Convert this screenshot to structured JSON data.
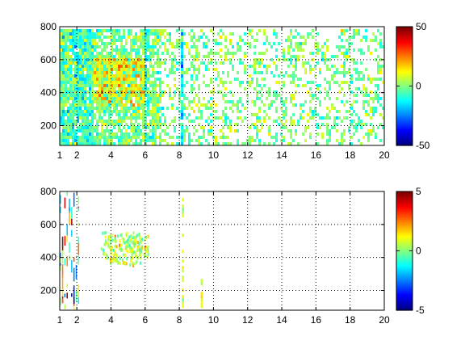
{
  "chart_data": [
    {
      "type": "heatmap",
      "title": "",
      "xlabel": "",
      "ylabel": "",
      "xlim": [
        1,
        20
      ],
      "ylim": [
        80,
        800
      ],
      "x_ticks": [
        1,
        2,
        4,
        6,
        8,
        10,
        12,
        14,
        16,
        18,
        20
      ],
      "y_ticks": [
        200,
        400,
        600,
        800
      ],
      "grid": true,
      "colormap": "jet",
      "colorbar": {
        "min": -50,
        "max": 50,
        "ticks": [
          50,
          0,
          -50
        ]
      },
      "fill_fraction": 0.45,
      "features": [
        {
          "name": "dense cluster",
          "x_range": [
            3,
            6
          ],
          "y_range": [
            330,
            620
          ],
          "mean": 8,
          "spread": 14
        },
        {
          "name": "vertical streak",
          "x": 8.2,
          "y_range": [
            80,
            800
          ],
          "mean": -15,
          "spread": 10
        },
        {
          "name": "vertical streak",
          "x": 6,
          "y_range": [
            80,
            800
          ],
          "mean": -12,
          "spread": 10
        },
        {
          "name": "low-x band",
          "x_range": [
            1,
            3
          ],
          "y_range": [
            80,
            800
          ],
          "mean": -5,
          "spread": 12
        }
      ]
    },
    {
      "type": "heatmap",
      "title": "",
      "xlabel": "",
      "ylabel": "",
      "xlim": [
        1,
        20
      ],
      "ylim": [
        80,
        800
      ],
      "x_ticks": [
        1,
        2,
        4,
        6,
        8,
        10,
        12,
        14,
        16,
        18,
        20
      ],
      "y_ticks": [
        200,
        400,
        600,
        800
      ],
      "grid": true,
      "colormap": "jet",
      "colorbar": {
        "min": -5,
        "max": 5,
        "ticks": [
          5,
          0,
          -5
        ]
      },
      "features": [
        {
          "name": "cluster",
          "x_range": [
            3.4,
            6.2
          ],
          "y_range": [
            360,
            560
          ],
          "mean": 0.5,
          "spread": 1.2
        },
        {
          "name": "vertical streak",
          "x": 8.2,
          "y_range": [
            100,
            760
          ],
          "mean": 1,
          "spread": 0.8
        },
        {
          "name": "vertical streak",
          "x": 9.3,
          "y_range": [
            110,
            270
          ],
          "mean": 1,
          "spread": 0.8
        },
        {
          "name": "scattered lines",
          "x_range": [
            1,
            2.2
          ],
          "y_range": [
            80,
            800
          ],
          "mean": 0,
          "spread": 4
        }
      ]
    }
  ]
}
